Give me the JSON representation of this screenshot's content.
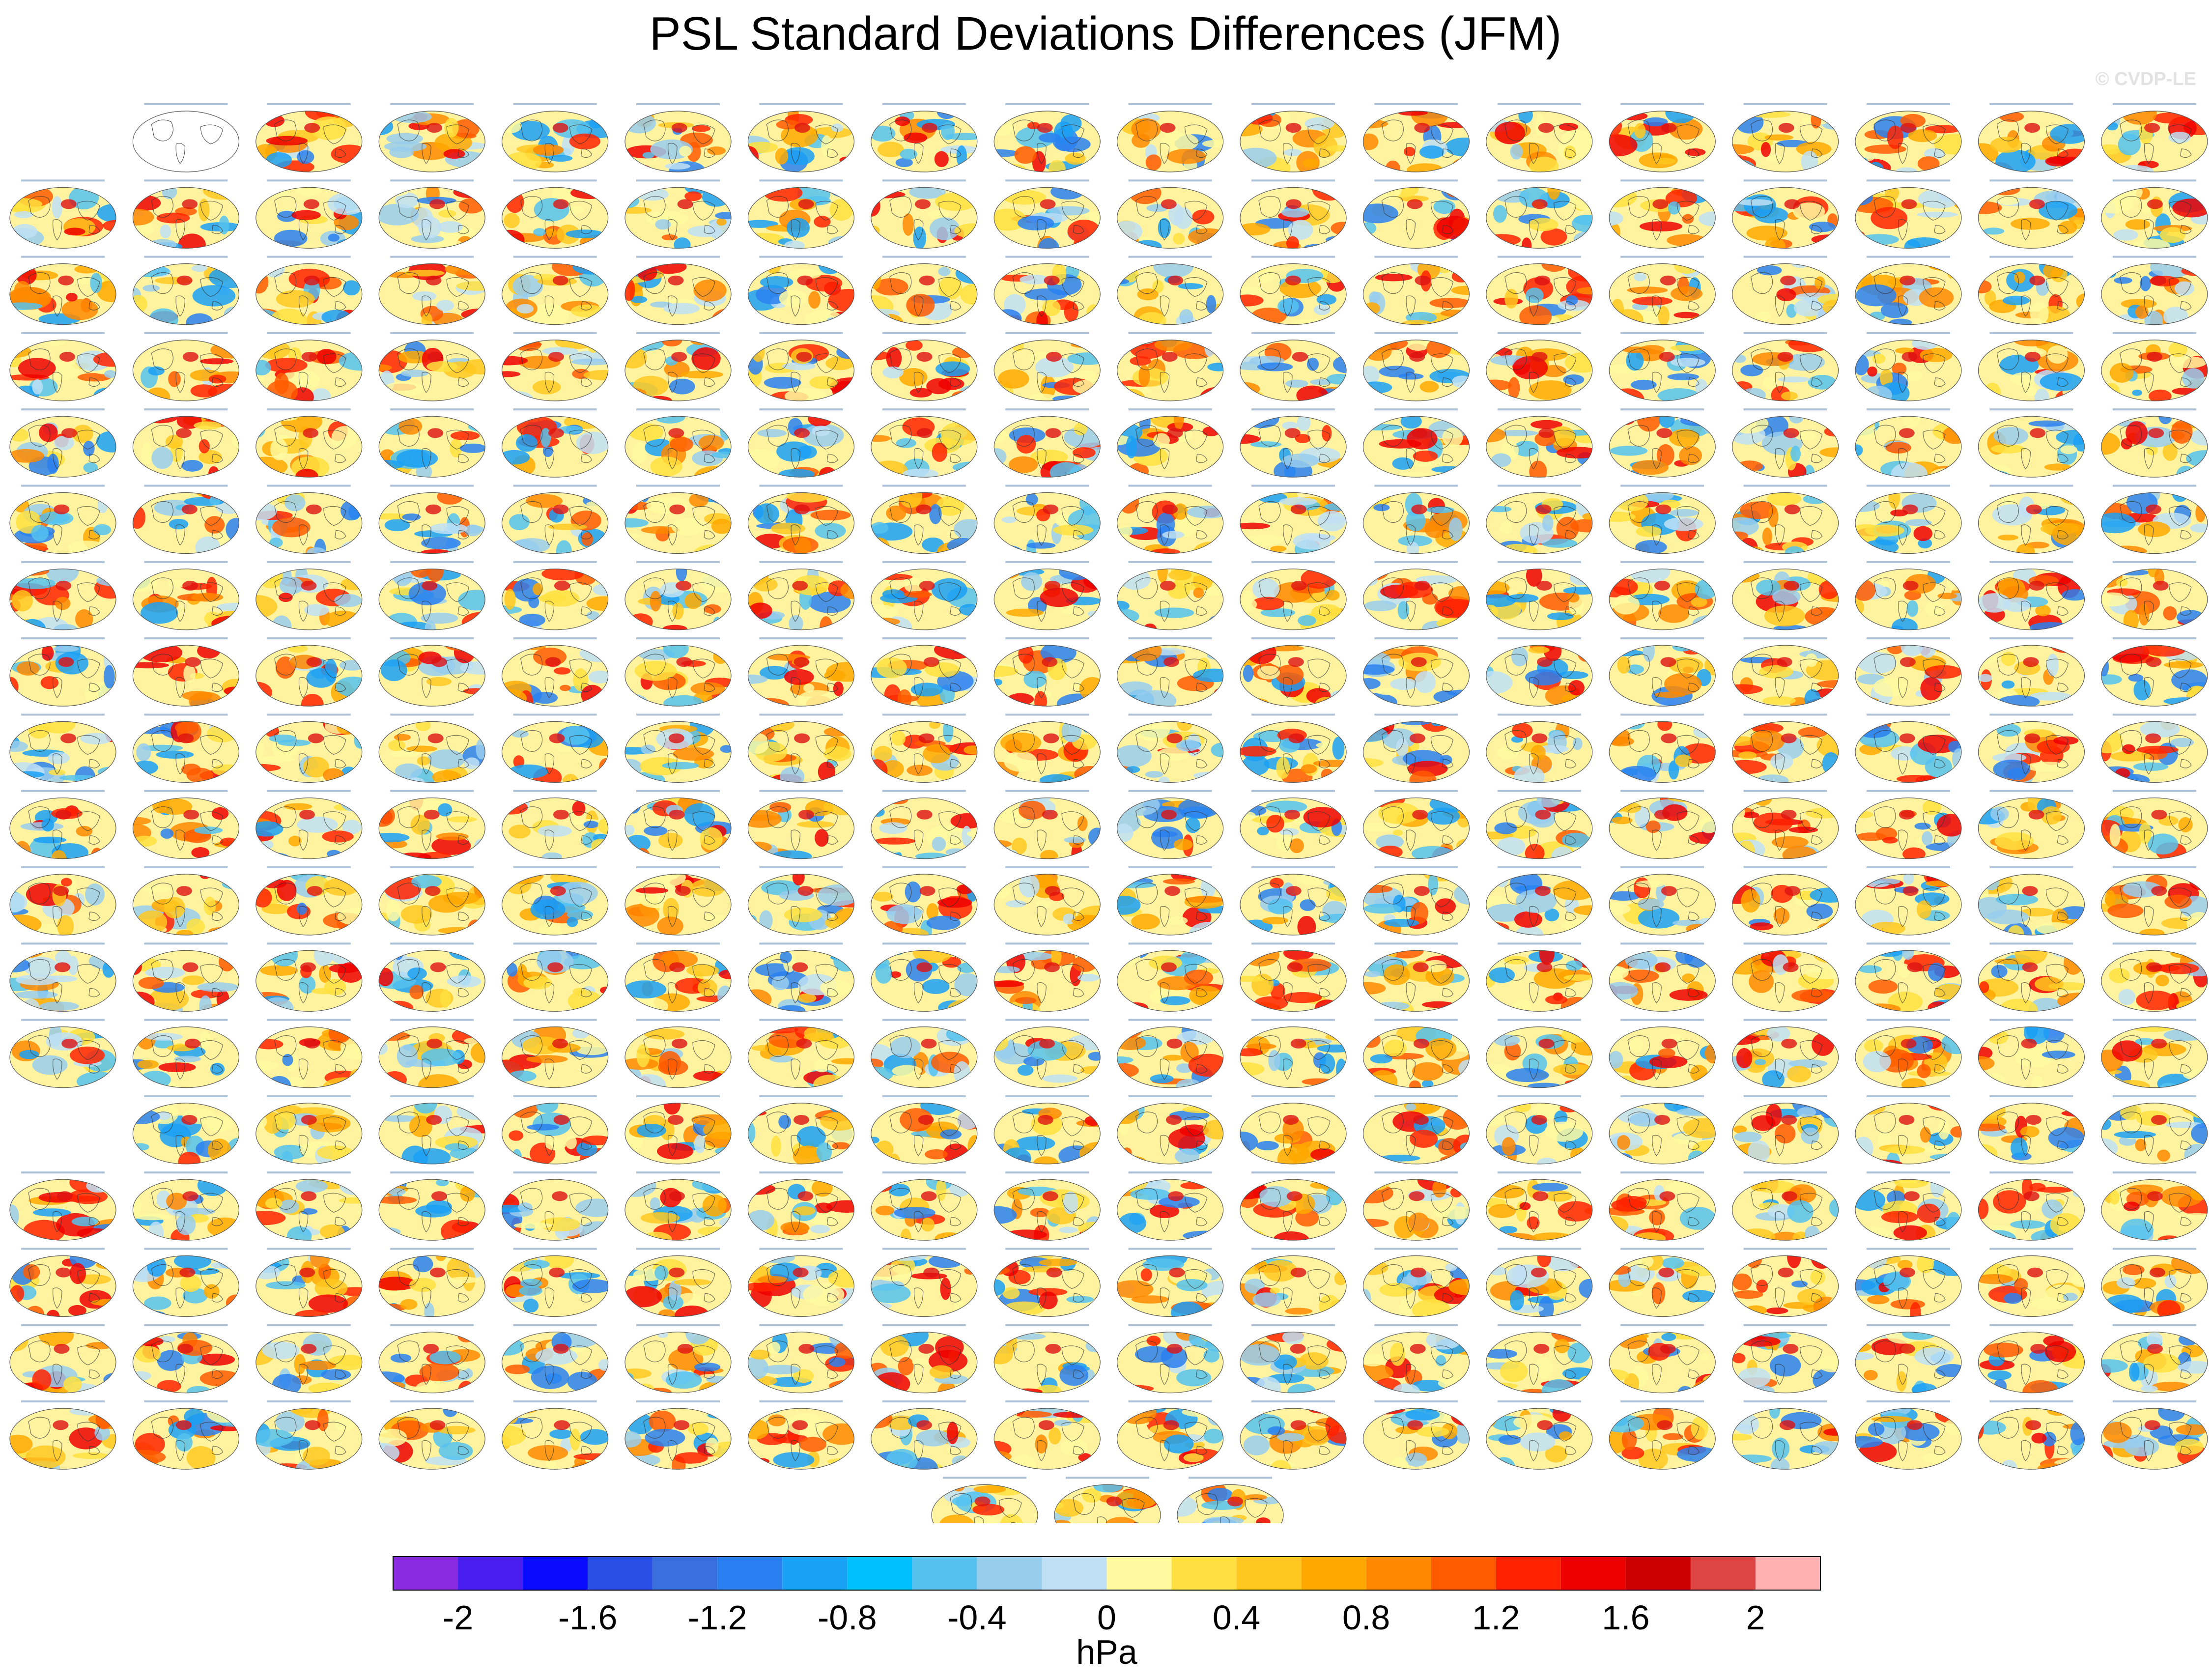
{
  "title": "PSL Standard Deviations Differences (JFM)",
  "credit": "© CVDP-LE",
  "chart_data": {
    "type": "heatmap",
    "title": "PSL Standard Deviations Differences (JFM)",
    "description_units": "hPa",
    "colorbar": {
      "units": "hPa",
      "range": [
        -2.2,
        2.2
      ],
      "levels": [
        -2,
        -1.8,
        -1.6,
        -1.4,
        -1.2,
        -1,
        -0.8,
        -0.6,
        -0.4,
        -0.2,
        0,
        0.2,
        0.4,
        0.6,
        0.8,
        1,
        1.2,
        1.4,
        1.6,
        1.8,
        2
      ],
      "tick_labels": [
        "-2",
        "-1.6",
        "-1.2",
        "-0.8",
        "-0.4",
        "0",
        "0.4",
        "0.8",
        "1.2",
        "1.6",
        "2"
      ],
      "tick_values": [
        -2,
        -1.6,
        -1.2,
        -0.8,
        -0.4,
        0,
        0.4,
        0.8,
        1.2,
        1.6,
        2
      ],
      "colors": [
        "#8a2be2",
        "#4b1ef0",
        "#0a0aff",
        "#2a4fe6",
        "#3a6fe0",
        "#2a80f0",
        "#1aa0f5",
        "#00c0ff",
        "#55c2ee",
        "#98cdee",
        "#bfe0f4",
        "#fff9a0",
        "#ffe040",
        "#ffc820",
        "#ffa800",
        "#ff8800",
        "#ff5a00",
        "#ff2200",
        "#ee0000",
        "#cc0000",
        "#dd4444",
        "#ffb0b0"
      ]
    },
    "panel_grid": {
      "columns": 18,
      "rows": 19,
      "total_panels": 328
    }
  }
}
